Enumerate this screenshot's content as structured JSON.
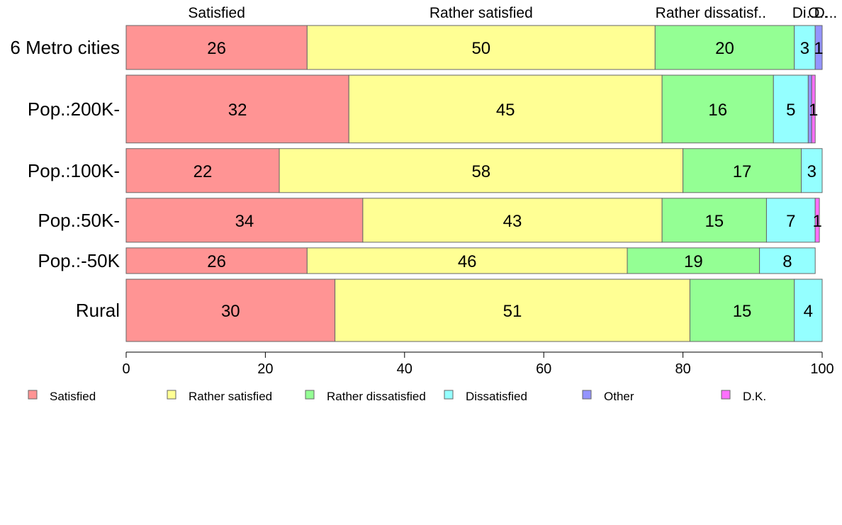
{
  "chart_data": {
    "type": "bar",
    "orientation": "horizontal",
    "stacked": true,
    "categories": [
      "6 Metro cities",
      "Pop.:200K-",
      "Pop.:100K-",
      "Pop.:50K-",
      "Pop.:-50K",
      "Rural"
    ],
    "series": [
      {
        "name": "Satisfied",
        "color": "#ff9494",
        "values": [
          26,
          32,
          22,
          34,
          26,
          30
        ]
      },
      {
        "name": "Rather satisfied",
        "color": "#ffff94",
        "values": [
          50,
          45,
          58,
          43,
          46,
          51
        ]
      },
      {
        "name": "Rather dissatisfied",
        "color": "#94ff94",
        "values": [
          20,
          16,
          17,
          15,
          19,
          15
        ]
      },
      {
        "name": "Dissatisfied",
        "color": "#94ffff",
        "values": [
          3,
          5,
          3,
          7,
          8,
          4
        ]
      },
      {
        "name": "Other",
        "color": "#9494ff",
        "values": [
          1,
          0.5,
          0,
          0,
          0,
          0.4
        ]
      },
      {
        "name": "D.K.",
        "color": "#ff70ff",
        "values": [
          0,
          0.5,
          0,
          0.6,
          0,
          0
        ]
      }
    ],
    "segment_labels": [
      [
        "26",
        "50",
        "20",
        "3",
        "1",
        ""
      ],
      [
        "32",
        "45",
        "16",
        "5",
        "",
        "1"
      ],
      [
        "22",
        "58",
        "17",
        "3",
        "",
        ""
      ],
      [
        "34",
        "43",
        "15",
        "7",
        "",
        "1"
      ],
      [
        "26",
        "46",
        "19",
        "8",
        "",
        ""
      ],
      [
        "30",
        "51",
        "15",
        "4",
        "",
        ""
      ]
    ],
    "top_labels": [
      "Satisfied",
      "Rather satisfied",
      "Rather dissatisf..",
      "Di..",
      "O..",
      "D..."
    ],
    "xlim": [
      0,
      100
    ],
    "xticks": [
      0,
      20,
      40,
      60,
      80,
      100
    ],
    "row_weights": [
      2.4,
      3.7,
      2.4,
      2.4,
      1.4,
      3.4
    ],
    "legend_position": "bottom",
    "grid": false
  }
}
